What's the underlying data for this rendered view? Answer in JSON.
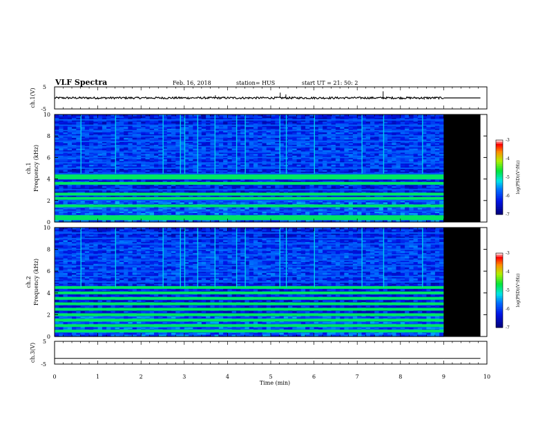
{
  "header": {
    "title": "VLF Spectra",
    "date": "Feb. 16, 2018",
    "station": "station= HUS",
    "start": "start  UT =   21: 50: 2"
  },
  "colors": {
    "background": "#ffffff",
    "no_data": "#000000",
    "trace": "#000000"
  },
  "chart_data": [
    {
      "type": "line",
      "name": "ch1-waveform",
      "ylabel": "ch.1(V)",
      "ylim": [
        -5,
        5
      ],
      "yticks": [
        "5",
        "-5"
      ],
      "xlim": [
        0,
        10
      ],
      "data_end_min": 9.0,
      "baseline": 0,
      "spikes": [
        {
          "x": 3.72,
          "y": 1.2
        },
        {
          "x": 5.22,
          "y": 2.4
        },
        {
          "x": 5.35,
          "y": 1.6
        },
        {
          "x": 7.6,
          "y": 3.0
        },
        {
          "x": 8.55,
          "y": -0.8
        }
      ]
    },
    {
      "type": "heatmap",
      "name": "ch1-spectrogram",
      "ylabel": "Frequency (kHz)",
      "panel_label": "ch.1",
      "xlim": [
        0,
        10
      ],
      "ylim": [
        0,
        10
      ],
      "yticks": [
        "0",
        "2",
        "4",
        "6",
        "8",
        "10"
      ],
      "data_end_min": 9.0,
      "colorbar": {
        "label": "log(PSD)(V²/Hz)",
        "range": [
          -7,
          -3
        ],
        "ticks": [
          "-3",
          "-4",
          "-5",
          "-6",
          "-7"
        ]
      },
      "bands_khz": [
        0.3,
        0.5,
        1.0,
        1.5,
        2.0,
        2.5,
        3.0,
        3.5,
        4.0,
        4.5,
        5.0,
        5.5,
        6.0,
        6.5,
        7.0,
        7.5,
        8.0,
        8.5,
        9.0,
        9.5
      ],
      "strong_bands_khz": [
        0.3,
        0.5,
        1.5,
        2.2,
        2.6,
        3.6,
        4.1,
        4.3
      ],
      "spheric_times_min": [
        0.6,
        1.4,
        2.5,
        2.9,
        3.0,
        3.3,
        3.7,
        4.2,
        4.4,
        5.2,
        5.35,
        6.0,
        7.1,
        7.6,
        8.5
      ]
    },
    {
      "type": "heatmap",
      "name": "ch2-spectrogram",
      "ylabel": "Frequency (kHz)",
      "panel_label": "ch.2",
      "xlim": [
        0,
        10
      ],
      "ylim": [
        0,
        10
      ],
      "yticks": [
        "0",
        "2",
        "4",
        "6",
        "8",
        "10"
      ],
      "data_end_min": 9.0,
      "colorbar": {
        "label": "log(PSD)(V²/Hz)",
        "range": [
          -7,
          -3
        ],
        "ticks": [
          "-3",
          "-4",
          "-5",
          "-6",
          "-7"
        ]
      },
      "bands_khz": [
        0.5,
        1.0,
        1.5,
        2.0,
        2.5,
        3.0,
        3.5,
        4.0,
        4.5,
        5.0,
        5.5,
        6.0,
        6.5,
        7.0,
        7.5,
        8.0,
        8.5,
        9.0,
        9.5
      ],
      "strong_bands_khz": [
        0.5,
        1.0,
        1.5,
        2.0,
        2.5,
        3.0,
        3.5,
        4.0,
        4.5
      ],
      "spheric_times_min": [
        0.6,
        1.4,
        2.5,
        2.9,
        3.0,
        3.3,
        3.7,
        4.2,
        4.4,
        5.2,
        5.35,
        6.0,
        7.1,
        7.6,
        8.5
      ]
    },
    {
      "type": "line",
      "name": "ch3-waveform",
      "ylabel": "ch.3(V)",
      "ylim": [
        -5,
        5
      ],
      "yticks": [
        "5",
        "-5"
      ],
      "xlim": [
        0,
        10
      ],
      "baseline": -2.5
    }
  ],
  "xaxis": {
    "label": "Time (min)",
    "ticks": [
      "0",
      "1",
      "2",
      "3",
      "4",
      "5",
      "6",
      "7",
      "8",
      "9",
      "10"
    ]
  }
}
